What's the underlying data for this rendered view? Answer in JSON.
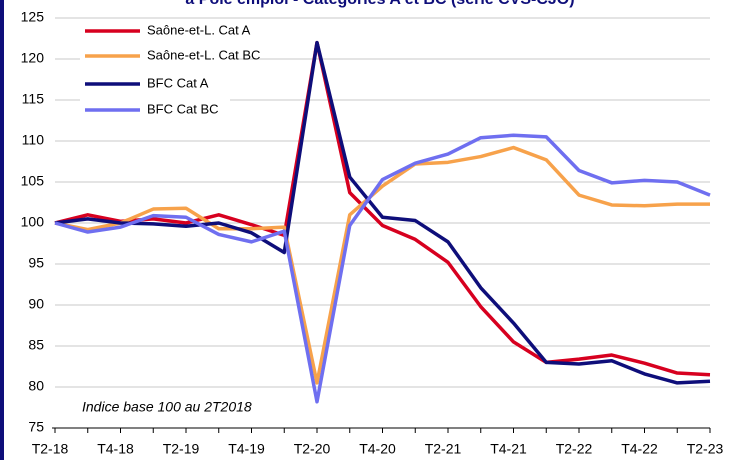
{
  "chart_data": {
    "type": "line",
    "title": "à Pôle emploi - Catégories A et BC (série CVS-CJO)",
    "annotation": "Indice base 100 au 2T2018",
    "categories": [
      "T2-18",
      null,
      "T4-18",
      null,
      "T2-19",
      null,
      "T4-19",
      null,
      "T2-20",
      null,
      "T4-20",
      null,
      "T2-21",
      null,
      "T4-21",
      null,
      "T2-22",
      null,
      "T4-22",
      null,
      "T2-23"
    ],
    "series": [
      {
        "name": "Saône-et-L.  Cat A",
        "color": "#d7001f",
        "values": [
          100,
          101,
          100.2,
          100.5,
          100,
          101,
          99.8,
          98.5,
          122,
          103.7,
          99.7,
          98,
          95.2,
          89.8,
          85.5,
          83,
          83.4,
          83.9,
          82.9,
          81.7,
          81.5
        ]
      },
      {
        "name": "Saône-et-L.  Cat BC",
        "color": "#f7a24b",
        "values": [
          100,
          99.2,
          100,
          101.7,
          101.8,
          99.3,
          99.3,
          99.5,
          80.5,
          101,
          104.5,
          107.2,
          107.4,
          108.1,
          109.2,
          107.7,
          103.4,
          102.2,
          102.1,
          102.3,
          102.3
        ]
      },
      {
        "name": "BFC Cat A",
        "color": "#0e0e7a",
        "values": [
          100,
          100.5,
          100,
          99.9,
          99.6,
          100,
          98.8,
          96.4,
          122,
          105.6,
          100.7,
          100.3,
          97.7,
          92.1,
          87.8,
          83,
          82.8,
          83.2,
          81.6,
          80.5,
          80.7
        ]
      },
      {
        "name": "BFC Cat BC",
        "color": "#6f6ff0",
        "values": [
          100,
          98.9,
          99.5,
          100.9,
          100.7,
          98.6,
          97.7,
          99,
          78.2,
          99.7,
          105.3,
          107.3,
          108.4,
          110.4,
          110.7,
          110.5,
          106.4,
          104.9,
          105.2,
          105,
          103.4
        ]
      }
    ],
    "ylim": [
      75,
      125
    ],
    "yticks": [
      75,
      80,
      85,
      90,
      95,
      100,
      105,
      110,
      115,
      120,
      125
    ],
    "grid": true
  }
}
